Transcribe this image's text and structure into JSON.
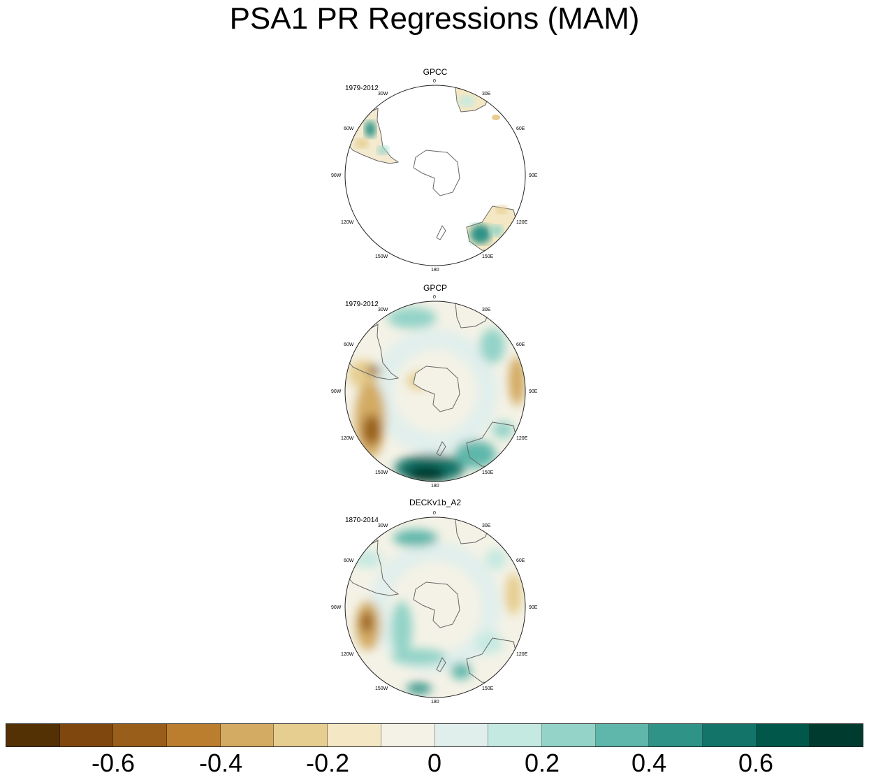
{
  "title": "PSA1 PR Regressions (MAM)",
  "panels": [
    {
      "name": "GPCC",
      "period": "1979-2012"
    },
    {
      "name": "GPCP",
      "period": "1979-2012"
    },
    {
      "name": "DECKv1b_A2",
      "period": "1870-2014"
    }
  ],
  "lon_labels": {
    "l0": "0",
    "l30e": "30E",
    "l60e": "60E",
    "l90e": "90E",
    "l120e": "120E",
    "l150e": "150E",
    "l180": "180",
    "l150w": "150W",
    "l120w": "120W",
    "l90w": "90W",
    "l60w": "60W",
    "l30w": "30W"
  },
  "colorbar": {
    "colors": [
      "#543005",
      "#7f470e",
      "#995e19",
      "#bb7d2e",
      "#d3ab63",
      "#e6cd90",
      "#f4e8c4",
      "#f4f2e6",
      "#e1efec",
      "#c4e9e1",
      "#93d3c8",
      "#5fb7ab",
      "#2f9387",
      "#137469",
      "#01584a",
      "#003b2f"
    ],
    "ticks": [
      "-0.6",
      "-0.4",
      "-0.2",
      "0",
      "0.2",
      "0.4",
      "0.6"
    ]
  }
}
